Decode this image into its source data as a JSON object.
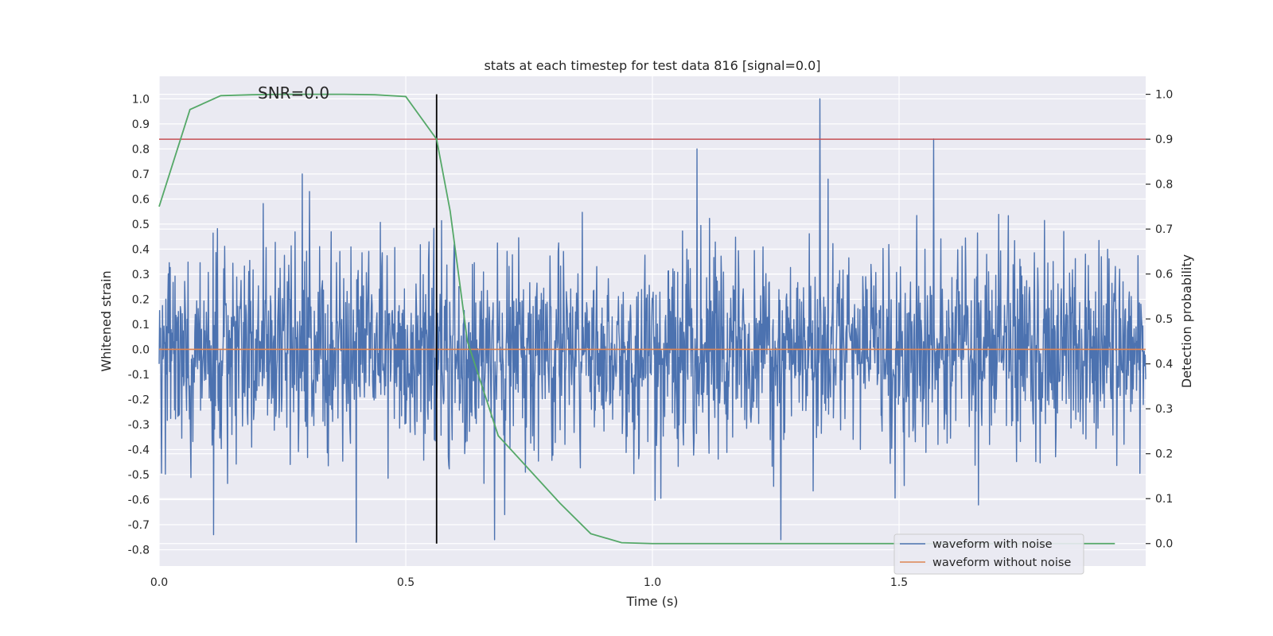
{
  "chart_data": {
    "type": "line",
    "title": "stats at each timestep for test data 816 [signal=0.0]",
    "annotation": "SNR=0.0",
    "xlabel": "Time (s)",
    "ylabel_left": "Whitened strain",
    "ylabel_right": "Detection probability",
    "xlim": [
      0.0,
      2.0
    ],
    "ylim_left": [
      -0.865,
      1.09
    ],
    "ylim_right": [
      -0.05,
      1.04
    ],
    "x_ticks": [
      "0.0",
      "0.5",
      "1.0",
      "1.5"
    ],
    "y_ticks_left": [
      "1.0",
      "0.9",
      "0.8",
      "0.7",
      "0.6",
      "0.5",
      "0.4",
      "0.3",
      "0.2",
      "0.1",
      "0.0",
      "-0.1",
      "-0.2",
      "-0.3",
      "-0.4",
      "-0.5",
      "-0.6",
      "-0.7",
      "-0.8"
    ],
    "y_ticks_right": [
      "1.0",
      "0.9",
      "0.8",
      "0.7",
      "0.6",
      "0.5",
      "0.4",
      "0.3",
      "0.2",
      "0.1",
      "0.0"
    ],
    "grid": true,
    "legend_position": "bottom-right",
    "series": [
      {
        "name": "waveform with noise",
        "axis": "left",
        "color": "#4c72b0",
        "kind": "noise",
        "n_samples": 2048,
        "amplitude_range": [
          -0.77,
          1.0
        ],
        "typical_std": 0.2,
        "notable_peaks": [
          {
            "x": 1.34,
            "y": 1.0
          },
          {
            "x": 1.09,
            "y": 0.8
          },
          {
            "x": 1.57,
            "y": 0.84
          },
          {
            "x": 0.29,
            "y": 0.7
          },
          {
            "x": 1.26,
            "y": -0.76
          },
          {
            "x": 0.4,
            "y": -0.77
          },
          {
            "x": 0.68,
            "y": -0.76
          },
          {
            "x": 0.11,
            "y": -0.74
          }
        ]
      },
      {
        "name": "waveform without noise",
        "axis": "left",
        "color": "#dd8452",
        "x": [
          0.0,
          2.0
        ],
        "y": [
          0.0,
          0.0
        ]
      },
      {
        "name": "",
        "axis": "right",
        "color": "#55a868",
        "x": [
          0.0,
          0.0625,
          0.125,
          0.1875,
          0.25,
          0.3125,
          0.375,
          0.4375,
          0.5,
          0.5625,
          0.59,
          0.625,
          0.6875,
          0.75,
          0.8125,
          0.875,
          0.9375,
          1.0,
          1.0625,
          1.125,
          1.25,
          1.5,
          1.75,
          1.9375
        ],
        "y": [
          0.75,
          0.966,
          0.997,
          0.999,
          1.0,
          1.0,
          1.0,
          0.999,
          0.995,
          0.9,
          0.74,
          0.45,
          0.24,
          0.165,
          0.09,
          0.022,
          0.002,
          0.0,
          0.0,
          0.0,
          0.0,
          0.0,
          0.0,
          0.0
        ]
      }
    ],
    "threshold": {
      "axis": "right",
      "y": 0.9,
      "color": "#c44e52"
    },
    "marker_line": {
      "x": 0.5625,
      "axis": "right",
      "y_range": [
        0.0,
        1.0
      ],
      "color": "#000000"
    }
  }
}
